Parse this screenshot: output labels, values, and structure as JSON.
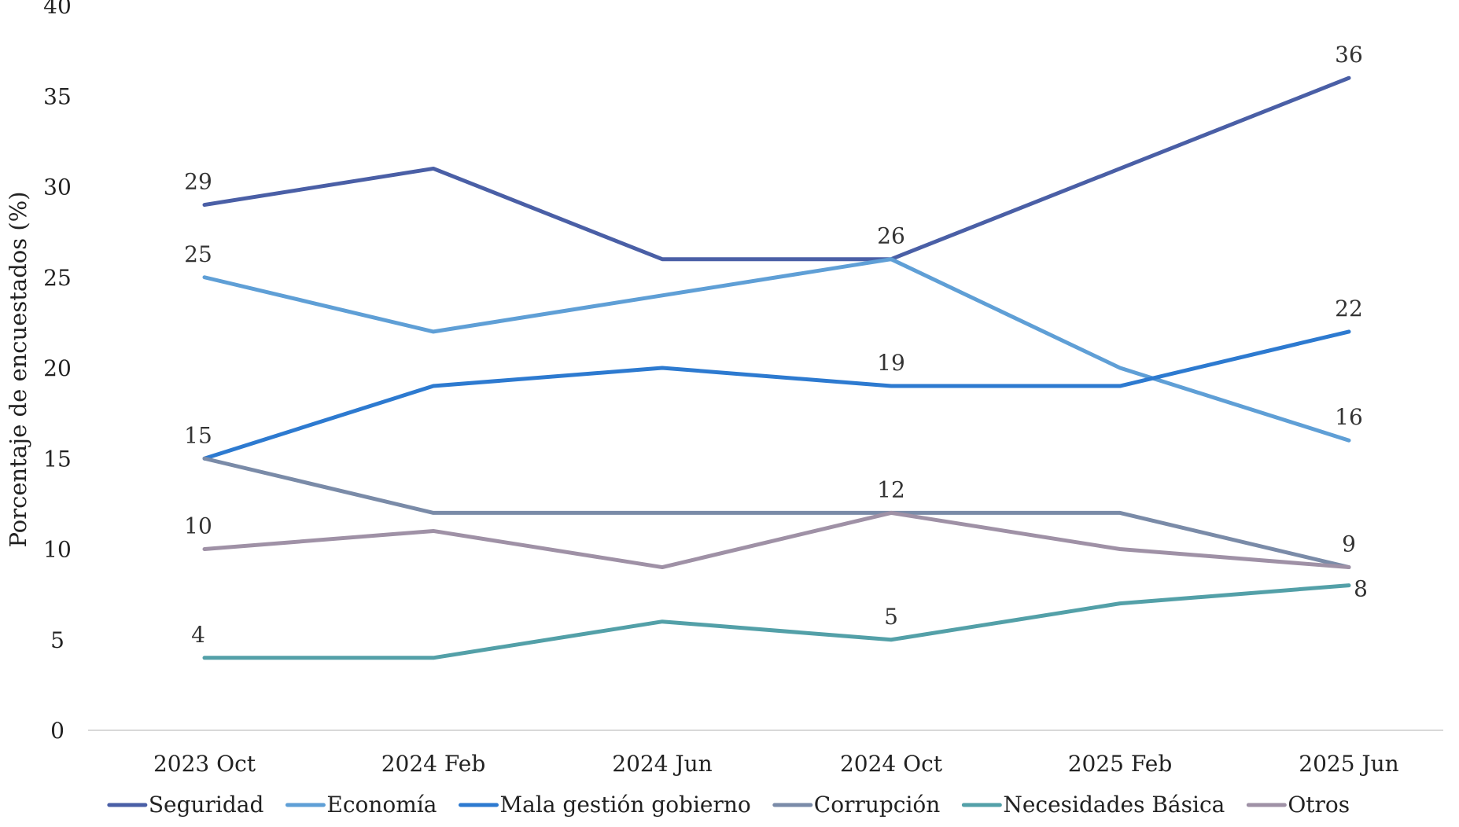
{
  "chart_data": {
    "type": "line",
    "ylabel": "Porcentaje de encuestados (%)",
    "xlabel": "",
    "ylim": [
      0,
      40
    ],
    "yticks": [
      0,
      5,
      10,
      15,
      20,
      25,
      30,
      35,
      40
    ],
    "grid": false,
    "legend_position": "bottom",
    "categories": [
      "2023 Oct",
      "2024 Feb",
      "2024 Jun",
      "2024 Oct",
      "2025 Feb",
      "2025 Jun"
    ],
    "series": [
      {
        "name": "Seguridad",
        "color": "#4a5fa6",
        "values": [
          29,
          31,
          26,
          26,
          31,
          36
        ]
      },
      {
        "name": "Economía",
        "color": "#5f9fd6",
        "values": [
          25,
          22,
          24,
          26,
          20,
          16
        ]
      },
      {
        "name": "Mala gestión gobierno",
        "color": "#2d7ad0",
        "values": [
          15,
          19,
          20,
          19,
          19,
          22
        ]
      },
      {
        "name": "Corrupción",
        "color": "#7a8ba8",
        "values": [
          15,
          12,
          12,
          12,
          12,
          9
        ]
      },
      {
        "name": "Necesidades Básica",
        "color": "#53a0a8",
        "values": [
          4,
          4,
          6,
          5,
          7,
          8
        ]
      },
      {
        "name": "Otros",
        "color": "#9f91a6",
        "values": [
          10,
          11,
          9,
          12,
          10,
          9
        ]
      }
    ],
    "annotations": [
      {
        "series": 0,
        "index": 0,
        "text": "29"
      },
      {
        "series": 0,
        "index": 3,
        "text": "26"
      },
      {
        "series": 0,
        "index": 5,
        "text": "36"
      },
      {
        "series": 1,
        "index": 0,
        "text": "25"
      },
      {
        "series": 1,
        "index": 5,
        "text": "16"
      },
      {
        "series": 2,
        "index": 0,
        "text": "15"
      },
      {
        "series": 2,
        "index": 3,
        "text": "19"
      },
      {
        "series": 2,
        "index": 5,
        "text": "22"
      },
      {
        "series": 3,
        "index": 3,
        "text": "12"
      },
      {
        "series": 3,
        "index": 5,
        "text": "9"
      },
      {
        "series": 4,
        "index": 0,
        "text": "4"
      },
      {
        "series": 4,
        "index": 3,
        "text": "5"
      },
      {
        "series": 4,
        "index": 5,
        "text": "8"
      },
      {
        "series": 5,
        "index": 0,
        "text": "10"
      }
    ]
  }
}
